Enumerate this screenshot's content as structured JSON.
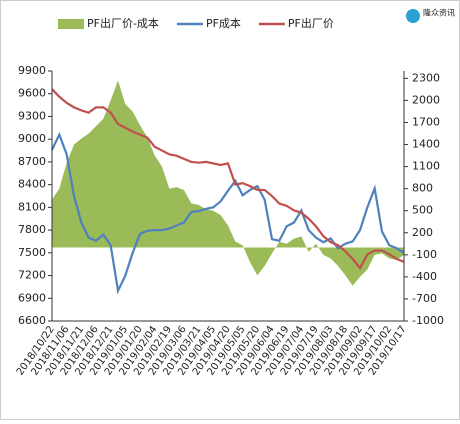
{
  "chart_data": {
    "type": "line-area",
    "categories": [
      "2018/10/22",
      null,
      "2018/11/06",
      null,
      "2018/11/21",
      null,
      "2018/12/06",
      null,
      "2018/12/21",
      null,
      "2019/01/05",
      null,
      "2019/01/20",
      null,
      "2019/02/04",
      null,
      "2019/02/19",
      null,
      "2019/03/06",
      null,
      "2019/03/21",
      null,
      "2019/04/05",
      null,
      "2019/04/20",
      null,
      "2019/05/05",
      null,
      "2019/05/20",
      null,
      "2019/06/04",
      null,
      "2019/06/19",
      null,
      "2019/07/04",
      null,
      "2019/07/19",
      null,
      "2019/08/03",
      null,
      "2019/08/18",
      null,
      "2019/09/02",
      null,
      "2019/09/17",
      null,
      "2019/10/02",
      null,
      "2019/10/17"
    ],
    "series": [
      {
        "name": "PF出厂价-成本",
        "color": "#9bbb59",
        "axis": "y2",
        "kind": "area",
        "values": [
          650,
          800,
          1150,
          1400,
          1480,
          1550,
          1650,
          1750,
          2000,
          2270,
          1950,
          1850,
          1660,
          1500,
          1250,
          1100,
          800,
          820,
          780,
          600,
          580,
          520,
          500,
          440,
          300,
          80,
          30,
          -200,
          -380,
          -250,
          -80,
          80,
          50,
          120,
          150,
          -60,
          50,
          -100,
          -150,
          -250,
          -380,
          -520,
          -400,
          -300,
          -100,
          -80,
          -150,
          -170,
          -100
        ]
      },
      {
        "name": "PF成本",
        "color": "#4f81bd",
        "kind": "line",
        "values": [
          8860,
          9060,
          8800,
          8250,
          7900,
          7700,
          7660,
          7740,
          7600,
          7000,
          7200,
          7500,
          7750,
          7790,
          7800,
          7800,
          7820,
          7860,
          7900,
          8040,
          8050,
          8080,
          8100,
          8180,
          8320,
          8450,
          8260,
          8330,
          8380,
          8200,
          7680,
          7660,
          7850,
          7900,
          8060,
          7800,
          7700,
          7640,
          7690,
          7560,
          7620,
          7650,
          7800,
          8100,
          8350,
          7780,
          7600,
          7560,
          7500
        ]
      },
      {
        "name": "PF出厂价",
        "color": "#c0504d",
        "kind": "line",
        "values": [
          9660,
          9560,
          9480,
          9420,
          9380,
          9350,
          9420,
          9420,
          9350,
          9200,
          9150,
          9100,
          9060,
          9020,
          8900,
          8850,
          8800,
          8780,
          8740,
          8700,
          8690,
          8700,
          8680,
          8660,
          8680,
          8400,
          8420,
          8380,
          8330,
          8330,
          8250,
          8150,
          8120,
          8060,
          8030,
          7950,
          7850,
          7720,
          7640,
          7600,
          7520,
          7420,
          7300,
          7480,
          7530,
          7530,
          7480,
          7420,
          7380
        ]
      }
    ],
    "ylim": [
      6600,
      9900
    ],
    "yticks": [
      6600,
      6900,
      7200,
      7500,
      7800,
      8100,
      8400,
      8700,
      9000,
      9300,
      9600,
      9900
    ],
    "y2lim": [
      -1000,
      2400
    ],
    "y2ticks": [
      -1000,
      -700,
      -400,
      -100,
      200,
      500,
      800,
      1100,
      1400,
      1700,
      2000,
      2300
    ],
    "legend": "top",
    "brand": "隆众资讯"
  }
}
